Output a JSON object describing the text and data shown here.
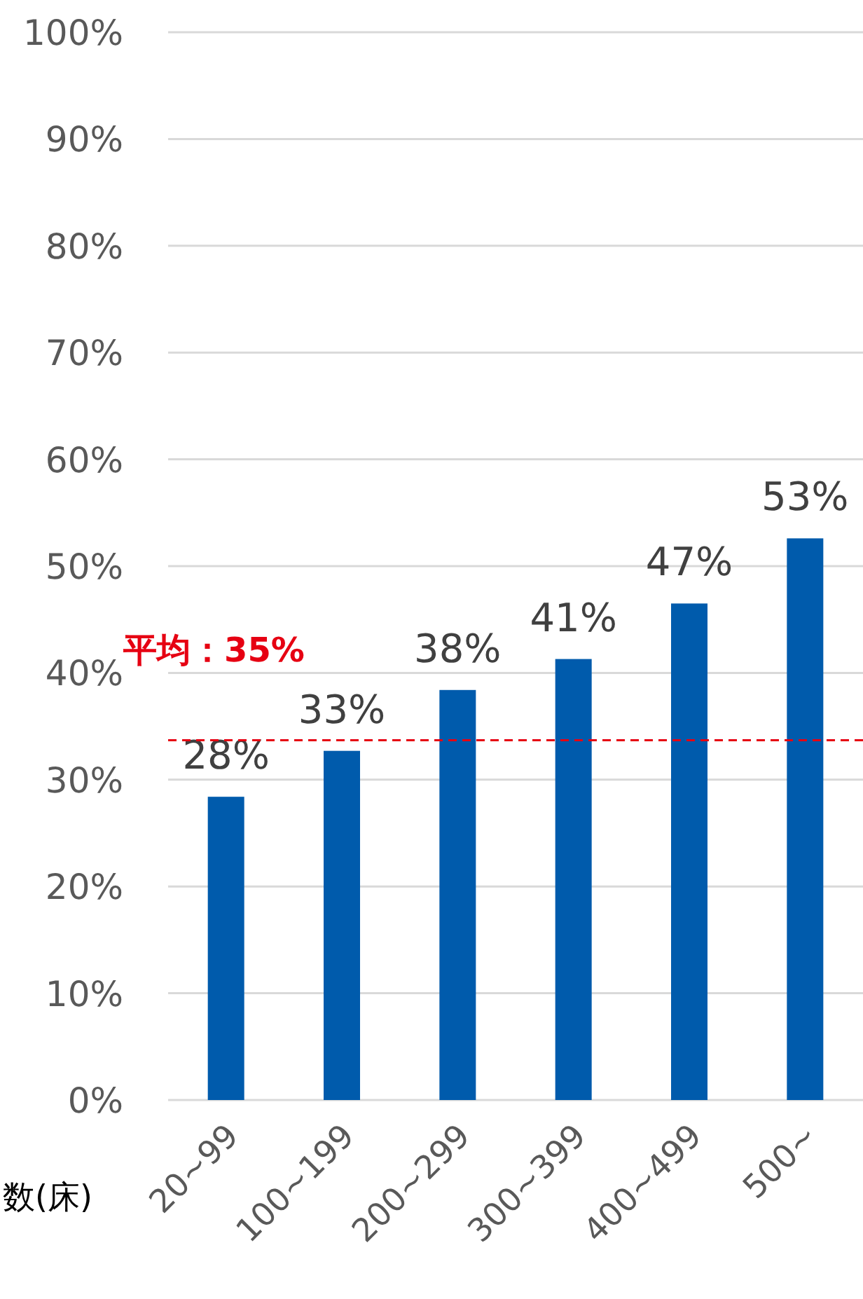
{
  "chart_data": {
    "type": "bar",
    "xlabel": "数(床)",
    "categories": [
      "20~99",
      "100~199",
      "200~299",
      "300~399",
      "400~499",
      "500~"
    ],
    "values": [
      28.4,
      32.7,
      38.4,
      41.3,
      46.5,
      52.6
    ],
    "value_labels": [
      "28%",
      "33%",
      "38%",
      "41%",
      "47%",
      "53%"
    ],
    "color": "#005bac",
    "ylim": [
      0,
      100
    ],
    "yticks": [
      {
        "value": 0,
        "label": "0%"
      },
      {
        "value": 10,
        "label": "10%"
      },
      {
        "value": 20,
        "label": "20%"
      },
      {
        "value": 30,
        "label": "30%"
      },
      {
        "value": 40,
        "label": "40%"
      },
      {
        "value": 50,
        "label": "50%"
      },
      {
        "value": 60,
        "label": "60%"
      },
      {
        "value": 70,
        "label": "70%"
      },
      {
        "value": 80,
        "label": "80%"
      },
      {
        "value": 90,
        "label": "90%"
      },
      {
        "value": 100,
        "label": "100%"
      }
    ],
    "grid": "y",
    "ref_lines": [
      {
        "axis": "y",
        "value": 33.7,
        "label": "平均：35%",
        "color": "#e60012",
        "line_style": "dashed"
      }
    ]
  }
}
